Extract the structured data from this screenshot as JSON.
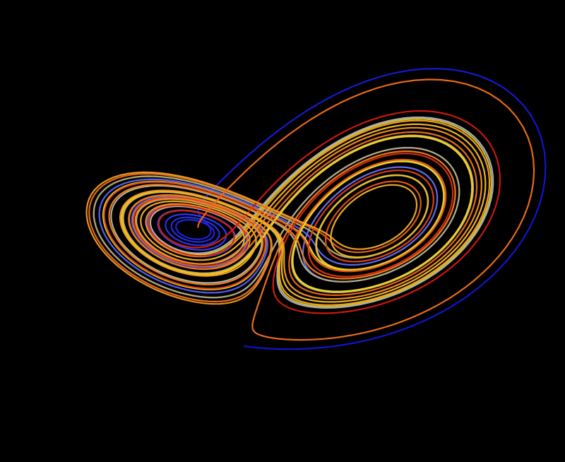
{
  "scene": {
    "subject": "lorenz-attractor",
    "background_color": "#000000",
    "palette": {
      "deep_blue": "#1010c8",
      "blue": "#3c4cff",
      "lavender": "#8c8cd8",
      "silver": "#b8b4b0",
      "olive": "#a8a040",
      "yellow": "#e8d830",
      "orange": "#f08c20",
      "dark_orange": "#e86418",
      "red": "#c81410"
    }
  }
}
